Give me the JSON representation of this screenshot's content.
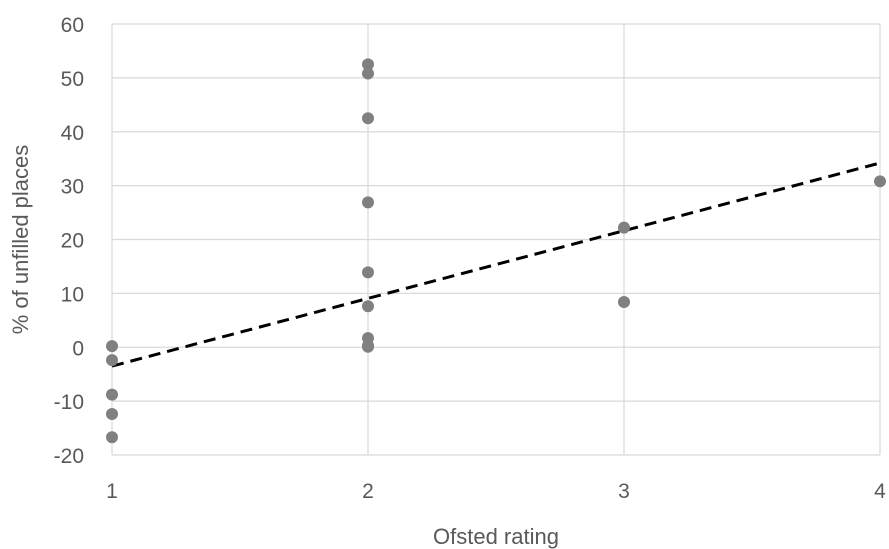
{
  "chart_data": {
    "type": "scatter",
    "title": "",
    "xlabel": "Ofsted rating",
    "ylabel": "% of unfilled places",
    "xlim": [
      1,
      4
    ],
    "ylim": [
      -20,
      60
    ],
    "xticks": [
      1,
      2,
      3,
      4
    ],
    "yticks": [
      -20,
      -10,
      0,
      10,
      20,
      30,
      40,
      50,
      60
    ],
    "grid": true,
    "legend": "none",
    "series": [
      {
        "marker_color": "#808080",
        "points": [
          {
            "x": 1,
            "y": 0.2
          },
          {
            "x": 1,
            "y": -2.4
          },
          {
            "x": 1,
            "y": -8.8
          },
          {
            "x": 1,
            "y": -12.4
          },
          {
            "x": 1,
            "y": -16.7
          },
          {
            "x": 2,
            "y": 52.5
          },
          {
            "x": 2,
            "y": 50.8
          },
          {
            "x": 2,
            "y": 42.5
          },
          {
            "x": 2,
            "y": 26.9
          },
          {
            "x": 2,
            "y": 13.9
          },
          {
            "x": 2,
            "y": 7.6
          },
          {
            "x": 2,
            "y": 1.7
          },
          {
            "x": 2,
            "y": 0.3
          },
          {
            "x": 2,
            "y": 0.1
          },
          {
            "x": 3,
            "y": 22.2
          },
          {
            "x": 3,
            "y": 8.4
          },
          {
            "x": 4,
            "y": 30.8
          }
        ]
      }
    ],
    "trendline": {
      "style": "dashed",
      "color": "#000000",
      "from": {
        "x": 1,
        "y": -3.5
      },
      "to": {
        "x": 4,
        "y": 34.2
      }
    }
  }
}
